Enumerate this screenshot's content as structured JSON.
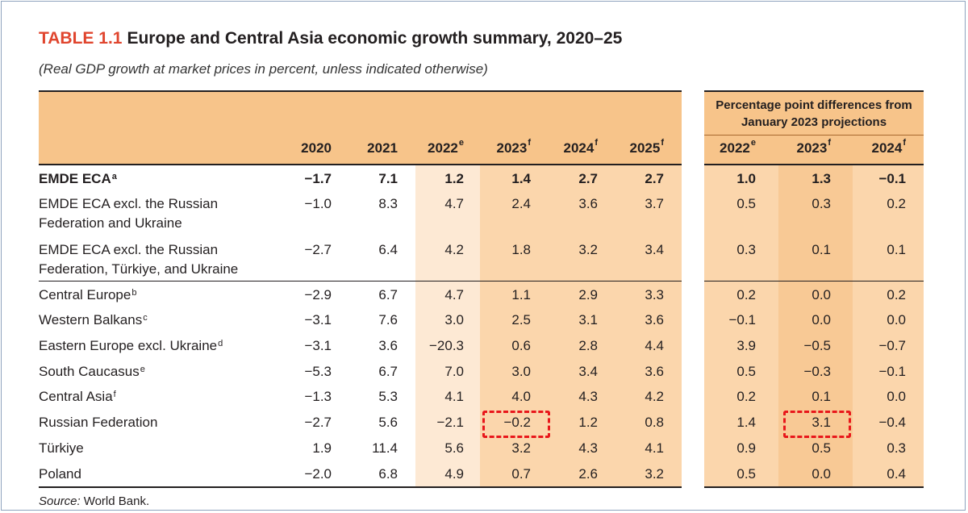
{
  "table": {
    "label": "TABLE 1.1",
    "title": "Europe and Central Asia economic growth summary, 2020–25",
    "subtitle": "(Real GDP growth at market prices in percent, unless indicated otherwise)",
    "group_header": "Percentage point differences from January 2023 projections",
    "columns": [
      {
        "year": "2020",
        "sup": ""
      },
      {
        "year": "2021",
        "sup": ""
      },
      {
        "year": "2022",
        "sup": "e"
      },
      {
        "year": "2023",
        "sup": "f"
      },
      {
        "year": "2024",
        "sup": "f"
      },
      {
        "year": "2025",
        "sup": "f"
      },
      {
        "year": "2022",
        "sup": "e"
      },
      {
        "year": "2023",
        "sup": "f"
      },
      {
        "year": "2024",
        "sup": "f"
      }
    ],
    "rows": [
      {
        "label": "EMDE ECA",
        "sup": "a",
        "bold": true,
        "values": [
          "−1.7",
          "7.1",
          "1.2",
          "1.4",
          "2.7",
          "2.7",
          "1.0",
          "1.3",
          "−0.1"
        ]
      },
      {
        "label": "EMDE ECA excl. the Russian Federation and Ukraine",
        "line1": "EMDE ECA excl. the Russian",
        "line2": "Federation and Ukraine",
        "values": [
          "−1.0",
          "8.3",
          "4.7",
          "2.4",
          "3.6",
          "3.7",
          "0.5",
          "0.3",
          "0.2"
        ]
      },
      {
        "label": "EMDE ECA excl. the Russian Federation, Türkiye, and Ukraine",
        "line1": "EMDE ECA excl. the Russian",
        "line2": "Federation, Türkiye, and Ukraine",
        "values": [
          "−2.7",
          "6.4",
          "4.2",
          "1.8",
          "3.2",
          "3.4",
          "0.3",
          "0.1",
          "0.1"
        ]
      },
      {
        "label": "Central Europe",
        "sup": "b",
        "values": [
          "−2.9",
          "6.7",
          "4.7",
          "1.1",
          "2.9",
          "3.3",
          "0.2",
          "0.0",
          "0.2"
        ]
      },
      {
        "label": "Western Balkans",
        "sup": "c",
        "values": [
          "−3.1",
          "7.6",
          "3.0",
          "2.5",
          "3.1",
          "3.6",
          "−0.1",
          "0.0",
          "0.0"
        ]
      },
      {
        "label": "Eastern Europe excl. Ukraine",
        "sup": "d",
        "values": [
          "−3.1",
          "3.6",
          "−20.3",
          "0.6",
          "2.8",
          "4.4",
          "3.9",
          "−0.5",
          "−0.7"
        ]
      },
      {
        "label": "South Caucasus",
        "sup": "e",
        "values": [
          "−5.3",
          "6.7",
          "7.0",
          "3.0",
          "3.4",
          "3.6",
          "0.5",
          "−0.3",
          "−0.1"
        ]
      },
      {
        "label": "Central Asia",
        "sup": "f",
        "values": [
          "−1.3",
          "5.3",
          "4.1",
          "4.0",
          "4.3",
          "4.2",
          "0.2",
          "0.1",
          "0.0"
        ]
      },
      {
        "label": "Russian Federation",
        "values": [
          "−2.7",
          "5.6",
          "−2.1",
          "−0.2",
          "1.2",
          "0.8",
          "1.4",
          "3.1",
          "−0.4"
        ]
      },
      {
        "label": "Türkiye",
        "values": [
          "1.9",
          "11.4",
          "5.6",
          "3.2",
          "4.3",
          "4.1",
          "0.9",
          "0.5",
          "0.3"
        ]
      },
      {
        "label": "Poland",
        "values": [
          "−2.0",
          "6.8",
          "4.9",
          "0.7",
          "2.6",
          "3.2",
          "0.5",
          "0.0",
          "0.4"
        ]
      }
    ],
    "source_label": "Source:",
    "source_text": "World Bank.",
    "colors": {
      "header_bg": "#f7c48a",
      "shade_light": "#fde9d4",
      "shade_mid": "#fbd6ac",
      "shade_dark": "#f8c995",
      "label_red": "#e0452e",
      "highlight_box": "#e8171b"
    }
  }
}
